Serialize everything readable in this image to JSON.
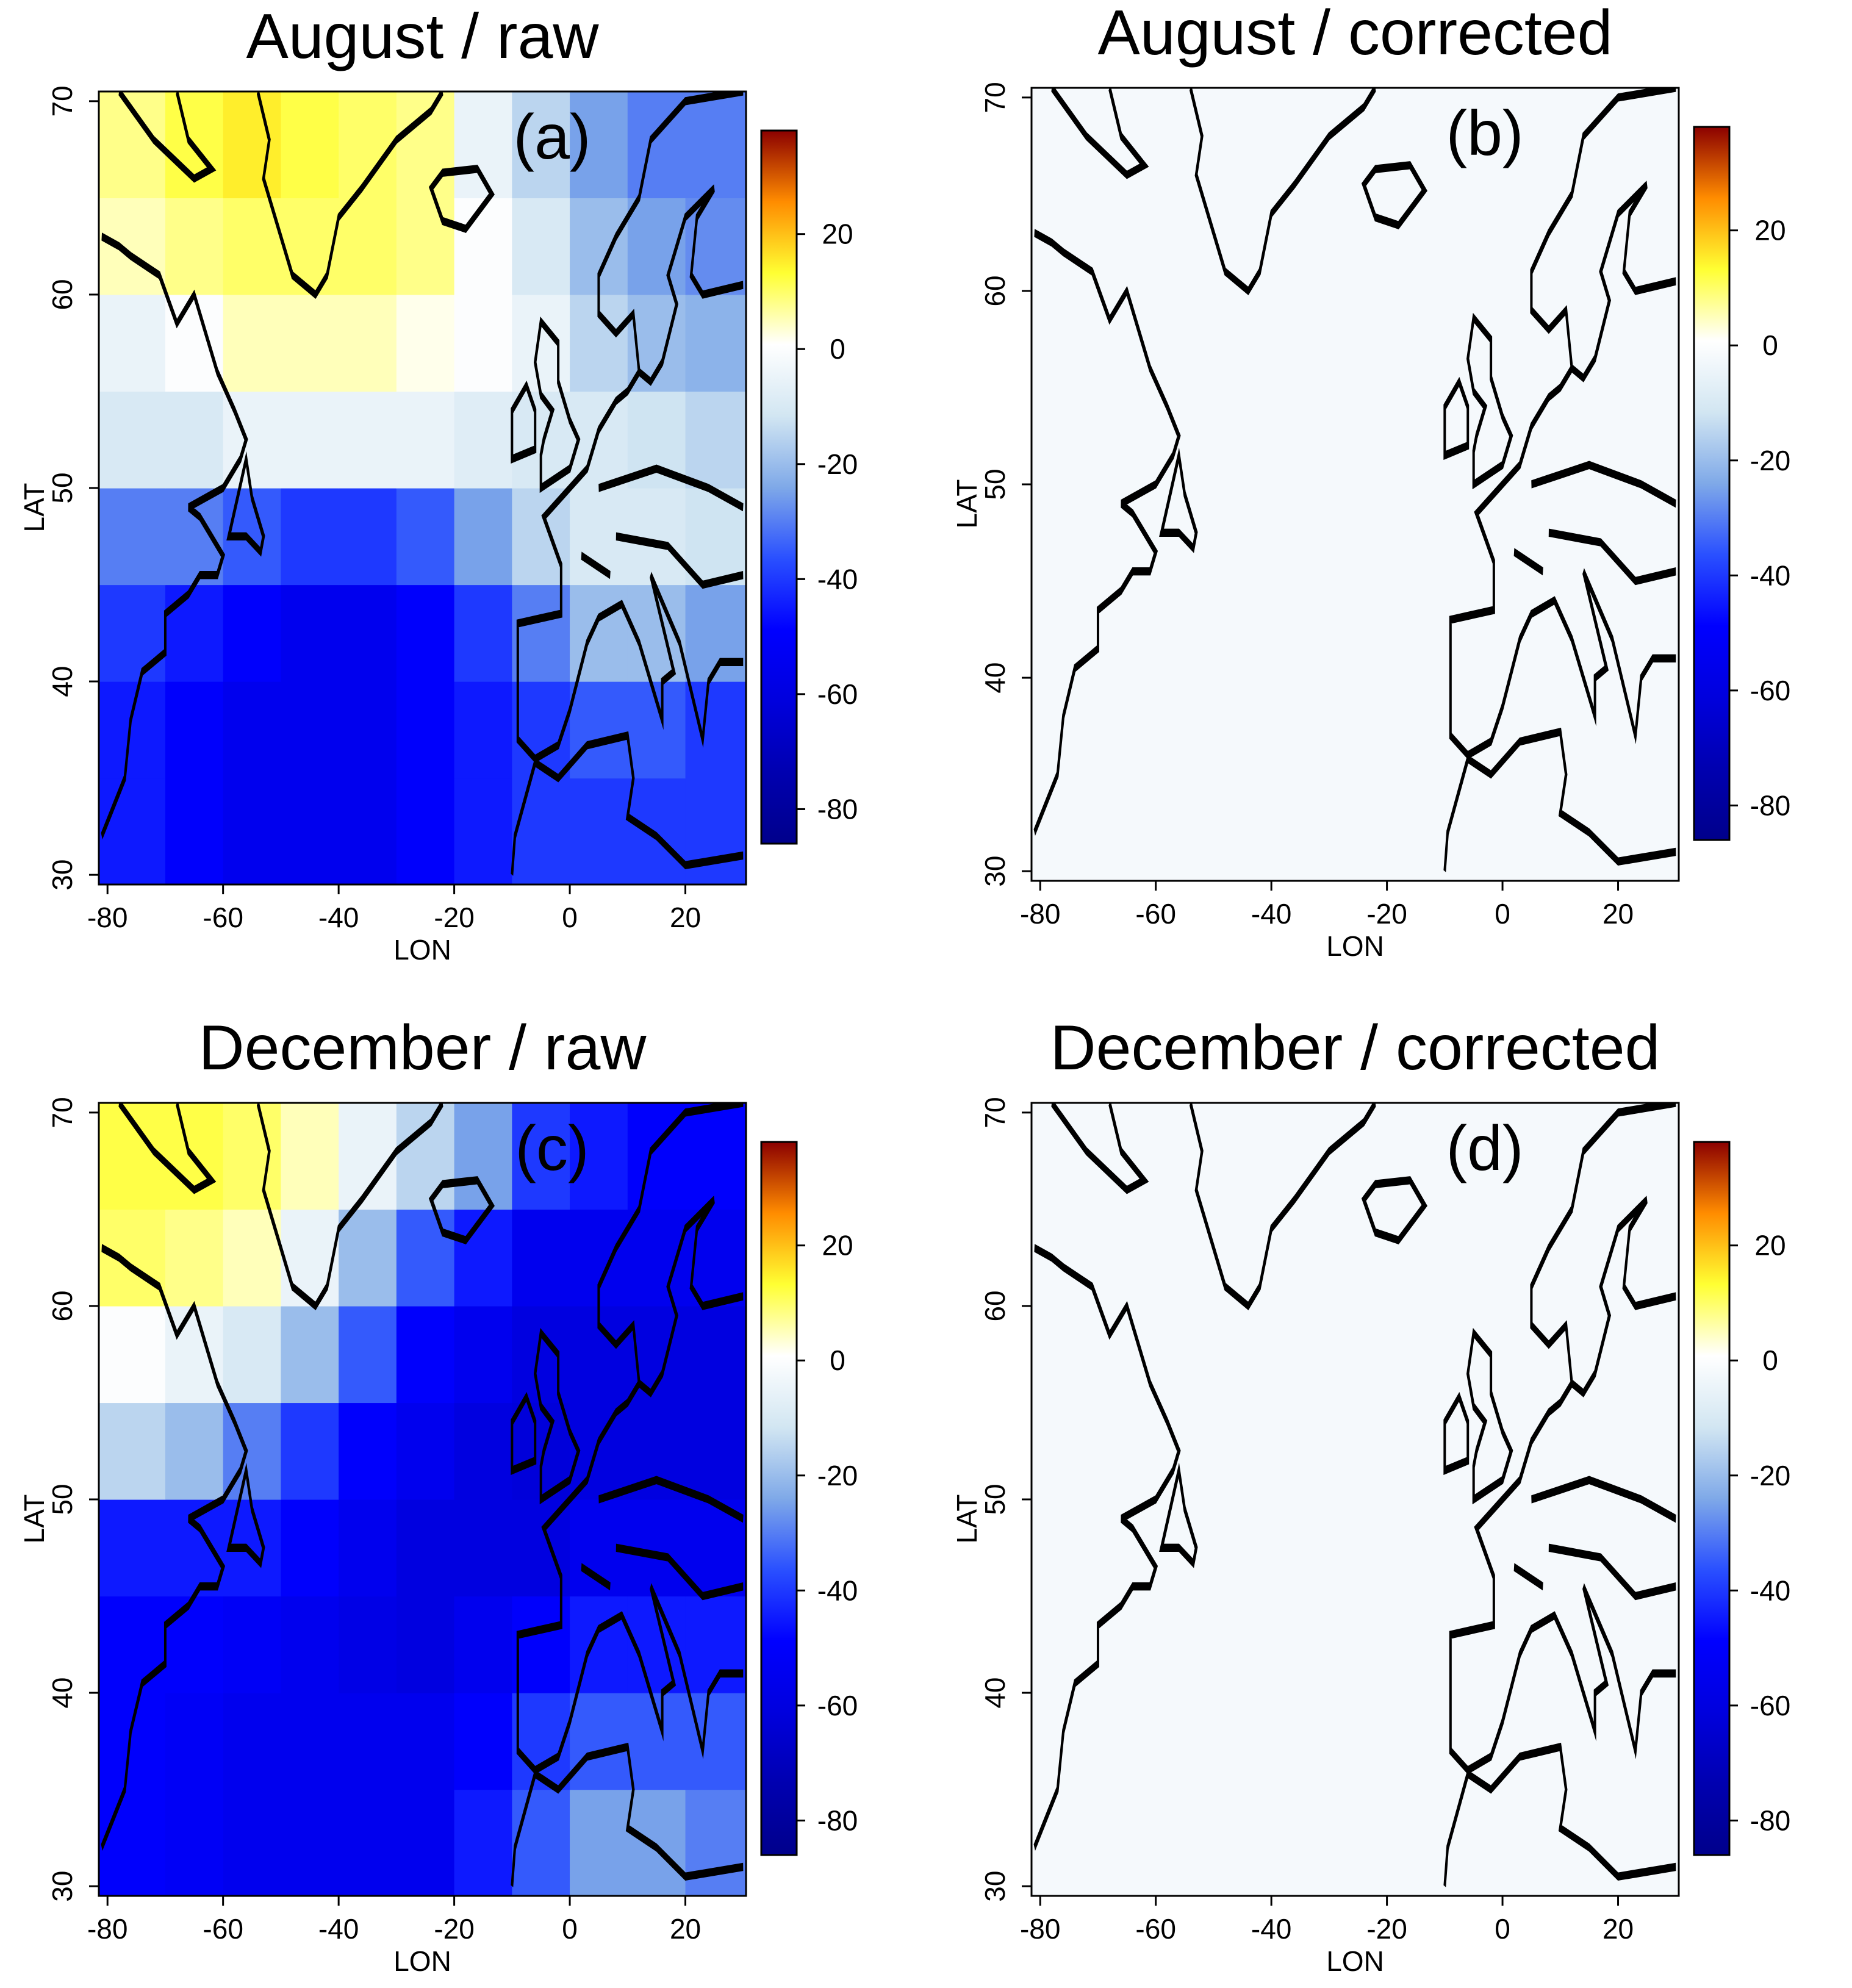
{
  "chart_data": [
    {
      "type": "heatmap",
      "title": "August / raw",
      "panel_label": "(a)",
      "x_label": "LON",
      "y_label": "LAT",
      "xlim": [
        -81.5,
        30.5
      ],
      "ylim": [
        29.5,
        70.5
      ],
      "xticks": [
        -80,
        -60,
        -40,
        -20,
        0,
        20
      ],
      "yticks": [
        30,
        40,
        50,
        60,
        70
      ],
      "xbins": [
        -81.5,
        -70,
        -60,
        -50,
        -40,
        -30,
        -20,
        -10,
        0,
        10,
        20,
        30.5
      ],
      "ybins": [
        29.5,
        35,
        40,
        45,
        50,
        55,
        60,
        65,
        70.5
      ],
      "values": [
        [
          -45,
          -50,
          -55,
          -55,
          -55,
          -50,
          -45,
          -40,
          -40,
          -40,
          -40
        ],
        [
          -45,
          -50,
          -55,
          -55,
          -55,
          -50,
          -45,
          -40,
          -35,
          -35,
          -40
        ],
        [
          -40,
          -45,
          -50,
          -55,
          -55,
          -50,
          -40,
          -30,
          -20,
          -20,
          -25
        ],
        [
          -30,
          -30,
          -35,
          -40,
          -40,
          -35,
          -25,
          -15,
          -10,
          -10,
          -12
        ],
        [
          -10,
          -10,
          -5,
          -5,
          -5,
          -5,
          -8,
          -10,
          -10,
          -12,
          -15
        ],
        [
          -5,
          0,
          5,
          5,
          5,
          2,
          0,
          -5,
          -15,
          -20,
          -22
        ],
        [
          5,
          8,
          10,
          10,
          10,
          8,
          0,
          -10,
          -20,
          -25,
          -28
        ],
        [
          8,
          12,
          15,
          12,
          10,
          8,
          -5,
          -15,
          -25,
          -30,
          -30
        ]
      ],
      "colorbar": {
        "lim": [
          -86,
          38
        ],
        "ticks": [
          -80,
          -60,
          -40,
          -20,
          0,
          20
        ],
        "colors": [
          "#00008b",
          "#0000b0",
          "#0000dd",
          "#0000ff",
          "#2a50ff",
          "#7fa9e8",
          "#d2e6f2",
          "#ffffff",
          "#ffff33",
          "#ff8c00",
          "#8b0000"
        ]
      }
    },
    {
      "type": "heatmap",
      "title": "August / corrected",
      "panel_label": "(b)",
      "x_label": "LON",
      "y_label": "LAT",
      "xlim": [
        -81.5,
        30.5
      ],
      "ylim": [
        29.5,
        70.5
      ],
      "xticks": [
        -80,
        -60,
        -40,
        -20,
        0,
        20
      ],
      "yticks": [
        30,
        40,
        50,
        60,
        70
      ],
      "xbins": [
        -81.5,
        -70,
        -60,
        -50,
        -40,
        -30,
        -20,
        -10,
        0,
        10,
        20,
        30.5
      ],
      "ybins": [
        29.5,
        35,
        40,
        45,
        50,
        55,
        60,
        65,
        70.5
      ],
      "values": [
        [
          -2,
          -2,
          -2,
          -2,
          -2,
          -2,
          -2,
          -2,
          -2,
          -2,
          -2
        ],
        [
          -2,
          -2,
          -2,
          -2,
          -2,
          -2,
          -2,
          -2,
          -2,
          -2,
          -2
        ],
        [
          -2,
          -2,
          -2,
          -2,
          -2,
          -2,
          -2,
          -2,
          -2,
          -2,
          -2
        ],
        [
          -2,
          -2,
          -2,
          -2,
          -2,
          -2,
          -2,
          -2,
          -2,
          -2,
          -2
        ],
        [
          -2,
          -2,
          -2,
          -2,
          -2,
          -2,
          -2,
          -2,
          -2,
          -2,
          -2
        ],
        [
          -2,
          -2,
          -2,
          -2,
          -2,
          -2,
          -2,
          -2,
          -2,
          -2,
          -2
        ],
        [
          -2,
          -2,
          -2,
          -2,
          -2,
          -2,
          -2,
          -2,
          -2,
          -2,
          -2
        ],
        [
          -2,
          -2,
          -2,
          -2,
          -2,
          -2,
          -2,
          -2,
          -2,
          -2,
          -2
        ]
      ],
      "colorbar": {
        "lim": [
          -86,
          38
        ],
        "ticks": [
          -80,
          -60,
          -40,
          -20,
          0,
          20
        ],
        "colors": [
          "#00008b",
          "#0000b0",
          "#0000dd",
          "#0000ff",
          "#2a50ff",
          "#7fa9e8",
          "#d2e6f2",
          "#ffffff",
          "#ffff33",
          "#ff8c00",
          "#8b0000"
        ]
      }
    },
    {
      "type": "heatmap",
      "title": "December / raw",
      "panel_label": "(c)",
      "x_label": "LON",
      "y_label": "LAT",
      "xlim": [
        -81.5,
        30.5
      ],
      "ylim": [
        29.5,
        70.5
      ],
      "xticks": [
        -80,
        -60,
        -40,
        -20,
        0,
        20
      ],
      "yticks": [
        30,
        40,
        50,
        60,
        70
      ],
      "xbins": [
        -81.5,
        -70,
        -60,
        -50,
        -40,
        -30,
        -20,
        -10,
        0,
        10,
        20,
        30.5
      ],
      "ybins": [
        29.5,
        35,
        40,
        45,
        50,
        55,
        60,
        65,
        70.5
      ],
      "values": [
        [
          -50,
          -52,
          -55,
          -55,
          -55,
          -55,
          -45,
          -35,
          -25,
          -25,
          -30
        ],
        [
          -50,
          -52,
          -55,
          -55,
          -55,
          -55,
          -50,
          -40,
          -35,
          -35,
          -35
        ],
        [
          -50,
          -50,
          -52,
          -55,
          -58,
          -60,
          -55,
          -50,
          -45,
          -45,
          -45
        ],
        [
          -45,
          -45,
          -45,
          -50,
          -55,
          -60,
          -60,
          -60,
          -55,
          -55,
          -55
        ],
        [
          -15,
          -20,
          -30,
          -40,
          -50,
          -55,
          -60,
          -62,
          -60,
          -60,
          -60
        ],
        [
          0,
          -5,
          -10,
          -20,
          -35,
          -50,
          -55,
          -60,
          -60,
          -60,
          -60
        ],
        [
          10,
          8,
          5,
          -5,
          -20,
          -35,
          -45,
          -55,
          -55,
          -55,
          -55
        ],
        [
          12,
          12,
          10,
          5,
          -5,
          -15,
          -25,
          -40,
          -45,
          -50,
          -50
        ]
      ],
      "colorbar": {
        "lim": [
          -86,
          38
        ],
        "ticks": [
          -80,
          -60,
          -40,
          -20,
          0,
          20
        ],
        "colors": [
          "#00008b",
          "#0000b0",
          "#0000dd",
          "#0000ff",
          "#2a50ff",
          "#7fa9e8",
          "#d2e6f2",
          "#ffffff",
          "#ffff33",
          "#ff8c00",
          "#8b0000"
        ]
      }
    },
    {
      "type": "heatmap",
      "title": "December / corrected",
      "panel_label": "(d)",
      "x_label": "LON",
      "y_label": "LAT",
      "xlim": [
        -81.5,
        30.5
      ],
      "ylim": [
        29.5,
        70.5
      ],
      "xticks": [
        -80,
        -60,
        -40,
        -20,
        0,
        20
      ],
      "yticks": [
        30,
        40,
        50,
        60,
        70
      ],
      "xbins": [
        -81.5,
        -70,
        -60,
        -50,
        -40,
        -30,
        -20,
        -10,
        0,
        10,
        20,
        30.5
      ],
      "ybins": [
        29.5,
        35,
        40,
        45,
        50,
        55,
        60,
        65,
        70.5
      ],
      "values": [
        [
          -2,
          -2,
          -2,
          -2,
          -2,
          -2,
          -2,
          -2,
          -2,
          -2,
          -2
        ],
        [
          -2,
          -2,
          -2,
          -2,
          -2,
          -2,
          -2,
          -2,
          -2,
          -2,
          -2
        ],
        [
          -2,
          -2,
          -2,
          -2,
          -2,
          -2,
          -2,
          -2,
          -2,
          -2,
          -2
        ],
        [
          -2,
          -2,
          -2,
          -2,
          -2,
          -2,
          -2,
          -2,
          -2,
          -2,
          -2
        ],
        [
          -2,
          -2,
          -2,
          -2,
          -2,
          -2,
          -2,
          -2,
          -2,
          -2,
          -2
        ],
        [
          -2,
          -2,
          -2,
          -2,
          -2,
          -2,
          -2,
          -2,
          -2,
          -2,
          -2
        ],
        [
          -2,
          -2,
          -2,
          -2,
          -2,
          -2,
          -2,
          -2,
          -2,
          -2,
          -2
        ],
        [
          -2,
          -2,
          -2,
          -2,
          -2,
          -2,
          -2,
          -2,
          -2,
          -2,
          -2
        ]
      ],
      "colorbar": {
        "lim": [
          -86,
          38
        ],
        "ticks": [
          -80,
          -60,
          -40,
          -20,
          0,
          20
        ],
        "colors": [
          "#00008b",
          "#0000b0",
          "#0000dd",
          "#0000ff",
          "#2a50ff",
          "#7fa9e8",
          "#d2e6f2",
          "#ffffff",
          "#ffff33",
          "#ff8c00",
          "#8b0000"
        ]
      }
    }
  ]
}
